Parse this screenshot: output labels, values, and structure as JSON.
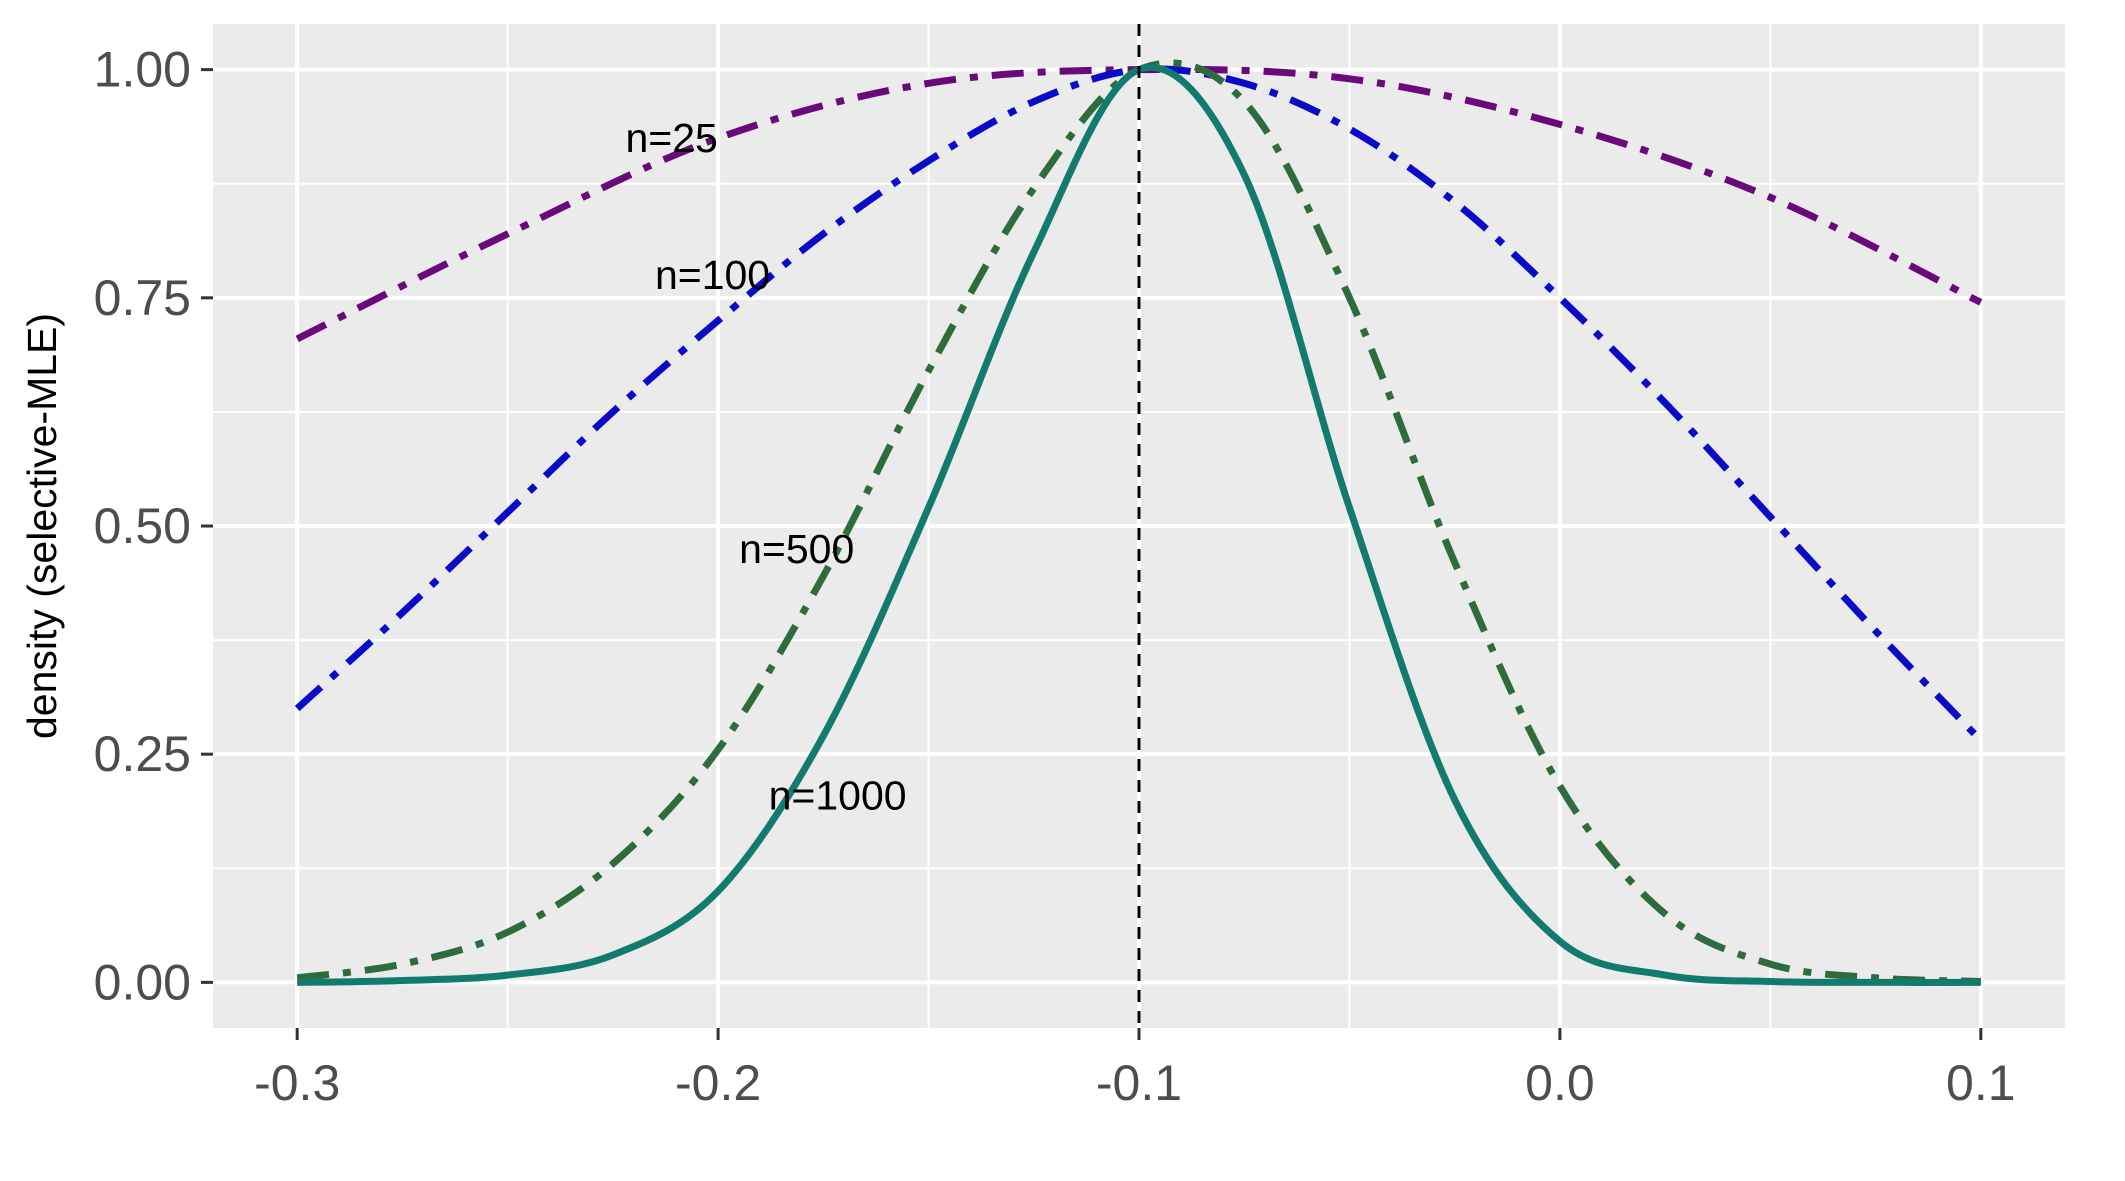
{
  "chart_data": {
    "type": "line",
    "title": "",
    "xlabel": "",
    "ylabel": "density (selective-MLE)",
    "xlim": [
      -0.32,
      0.12
    ],
    "ylim": [
      -0.05,
      1.05
    ],
    "x_ticks": [
      -0.3,
      -0.2,
      -0.1,
      0.0,
      0.1
    ],
    "x_tick_labels": [
      "-0.3",
      "-0.2",
      "-0.1",
      "0.0",
      "0.1"
    ],
    "y_ticks": [
      0.0,
      0.25,
      0.5,
      0.75,
      1.0
    ],
    "y_tick_labels": [
      "0.00",
      "0.25",
      "0.50",
      "0.75",
      "1.00"
    ],
    "grid": true,
    "panel_background": "#ebebeb",
    "reference_line": {
      "x": -0.1,
      "style": "dashed",
      "color": "#000000"
    },
    "series": [
      {
        "label": "n=25",
        "color": "#6a0a7a",
        "dash": "dashdot",
        "label_pos": {
          "x": -0.222,
          "y": 0.925
        },
        "x": [
          -0.3,
          -0.25,
          -0.2,
          -0.15,
          -0.1,
          -0.05,
          0.0,
          0.05,
          0.1
        ],
        "y": [
          0.705,
          0.82,
          0.925,
          0.985,
          1.0,
          0.99,
          0.94,
          0.86,
          0.745
        ]
      },
      {
        "label": "n=100",
        "color": "#0a0ac8",
        "dash": "dashdot",
        "label_pos": {
          "x": -0.215,
          "y": 0.775
        },
        "x": [
          -0.3,
          -0.275,
          -0.25,
          -0.225,
          -0.2,
          -0.175,
          -0.15,
          -0.125,
          -0.1,
          -0.075,
          -0.05,
          -0.025,
          0.0,
          0.025,
          0.05,
          0.075,
          0.1
        ],
        "y": [
          0.3,
          0.405,
          0.515,
          0.625,
          0.725,
          0.82,
          0.9,
          0.965,
          1.0,
          0.985,
          0.935,
          0.855,
          0.75,
          0.635,
          0.51,
          0.385,
          0.265
        ]
      },
      {
        "label": "n=500",
        "color": "#2e6b3d",
        "dash": "dashdot",
        "label_pos": {
          "x": -0.195,
          "y": 0.475
        },
        "x": [
          -0.3,
          -0.275,
          -0.25,
          -0.225,
          -0.2,
          -0.175,
          -0.15,
          -0.125,
          -0.1,
          -0.075,
          -0.05,
          -0.025,
          0.0,
          0.025,
          0.05,
          0.075,
          0.1
        ],
        "y": [
          0.005,
          0.02,
          0.055,
          0.13,
          0.255,
          0.445,
          0.67,
          0.87,
          1.0,
          0.965,
          0.75,
          0.46,
          0.215,
          0.075,
          0.02,
          0.005,
          0.001
        ]
      },
      {
        "label": "n=1000",
        "color": "#137a6e",
        "dash": "solid",
        "label_pos": {
          "x": -0.188,
          "y": 0.205
        },
        "x": [
          -0.3,
          -0.275,
          -0.25,
          -0.225,
          -0.2,
          -0.175,
          -0.15,
          -0.125,
          -0.1,
          -0.075,
          -0.05,
          -0.025,
          0.0,
          0.025,
          0.05,
          0.075,
          0.1
        ],
        "y": [
          0.0,
          0.002,
          0.008,
          0.03,
          0.1,
          0.27,
          0.52,
          0.8,
          1.0,
          0.885,
          0.52,
          0.2,
          0.045,
          0.008,
          0.001,
          0.0,
          0.0
        ]
      }
    ]
  }
}
